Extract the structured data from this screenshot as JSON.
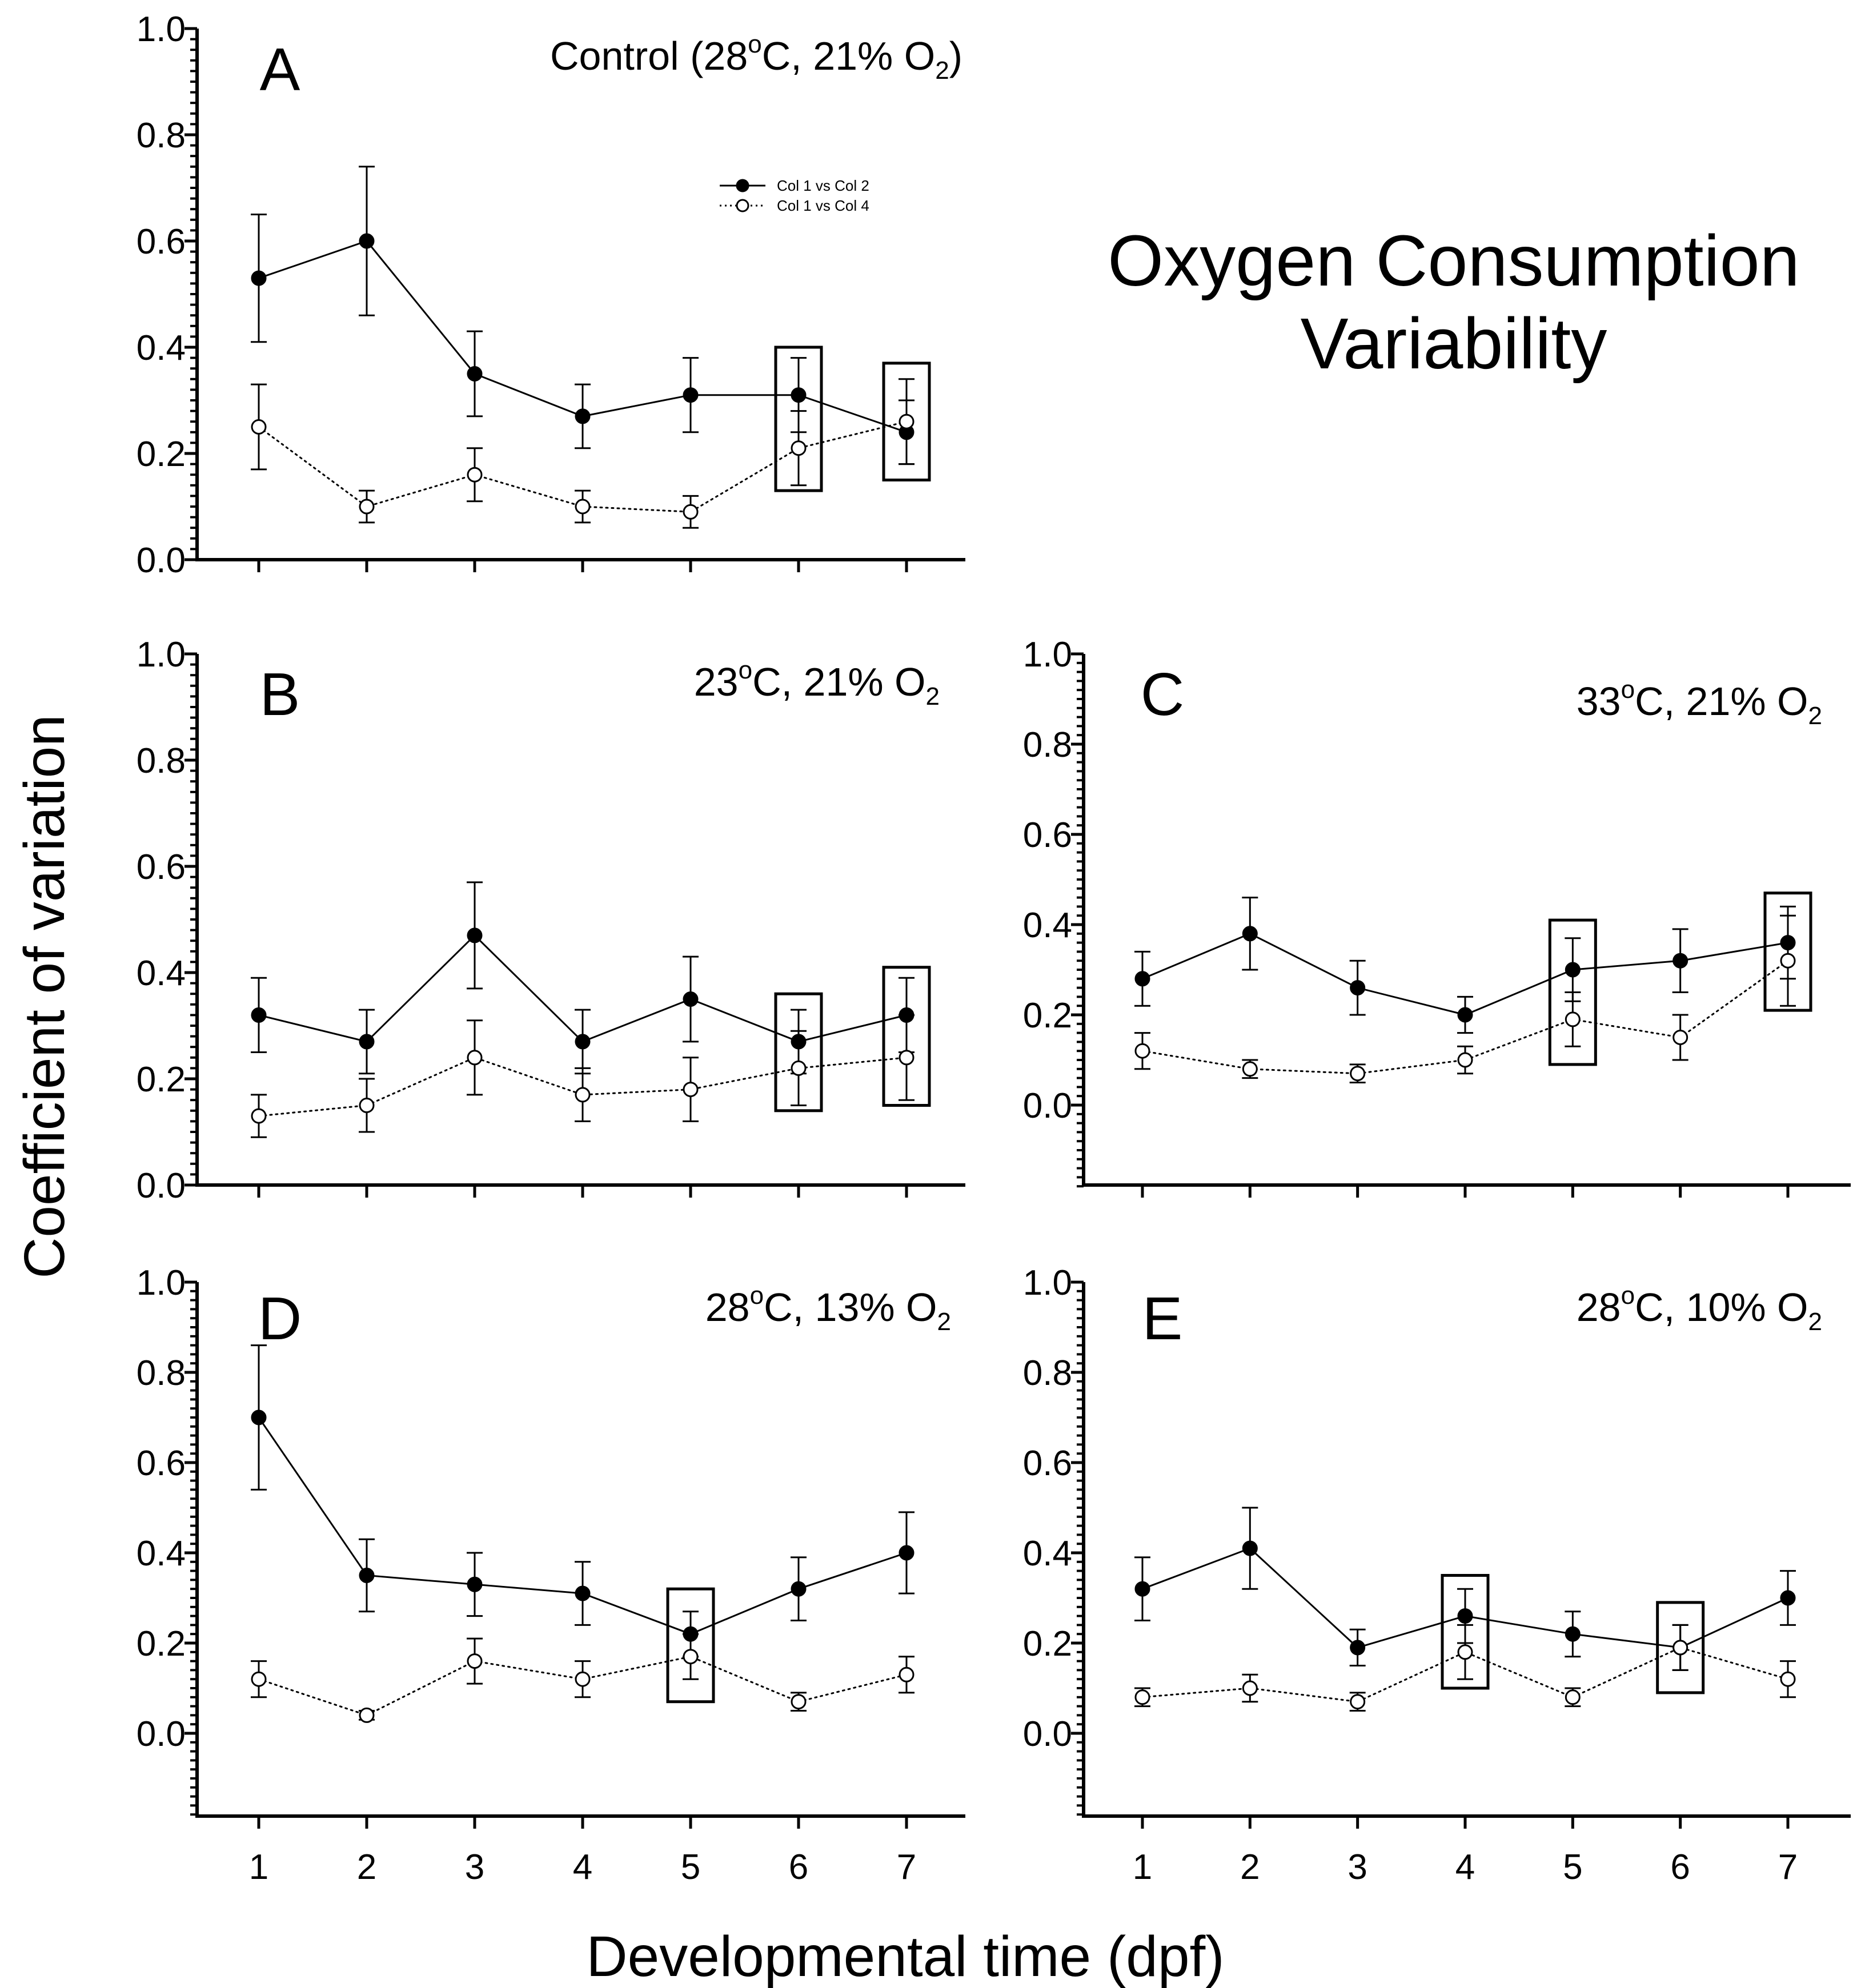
{
  "figure_title": [
    "Oxygen Consumption",
    "Variability"
  ],
  "ylabel": "Coefficient of variation",
  "xlabel": "Developmental time (dpf)",
  "legend": [
    {
      "label": "Col 1 vs Col 2",
      "marker": "filled-circle",
      "line": "solid"
    },
    {
      "label": "Col 1 vs Col 4",
      "marker": "open-circle",
      "line": "dotted"
    }
  ],
  "colors": {
    "line": "#000000",
    "background": "#ffffff"
  },
  "chart_data": [
    {
      "id": "A",
      "type": "line",
      "letter": "A",
      "condition": {
        "prefix": "Control (28",
        "sup": "o",
        "middle": "C, 21% O",
        "sub": "2",
        "suffix": ")"
      },
      "x": [
        1,
        2,
        3,
        4,
        5,
        6,
        7
      ],
      "xlim": [
        0.7,
        7.6
      ],
      "ylim": [
        0,
        1.0
      ],
      "yticks": [
        "0.0",
        "0.2",
        "0.4",
        "0.6",
        "0.8",
        "1.0"
      ],
      "xticks": [],
      "series": [
        {
          "name": "Col 1 vs Col 2",
          "values": [
            0.53,
            0.6,
            0.35,
            0.27,
            0.31,
            0.31,
            0.24
          ],
          "err_plus": [
            0.12,
            0.14,
            0.08,
            0.06,
            0.07,
            0.07,
            0.06
          ],
          "err_minus": [
            0.12,
            0.14,
            0.08,
            0.06,
            0.07,
            0.07,
            0.06
          ]
        },
        {
          "name": "Col 1 vs Col 4",
          "values": [
            0.25,
            0.1,
            0.16,
            0.1,
            0.09,
            0.21,
            0.26
          ],
          "err_plus": [
            0.08,
            0.03,
            0.05,
            0.03,
            0.03,
            0.07,
            0.08
          ],
          "err_minus": [
            0.08,
            0.03,
            0.05,
            0.03,
            0.03,
            0.07,
            0.08
          ]
        }
      ],
      "highlight_boxes": [
        {
          "x": 6,
          "y_low": 0.13,
          "y_high": 0.4
        },
        {
          "x": 7,
          "y_low": 0.15,
          "y_high": 0.37
        }
      ]
    },
    {
      "id": "B",
      "type": "line",
      "letter": "B",
      "condition": {
        "prefix": "23",
        "sup": "o",
        "middle": "C, 21% O",
        "sub": "2",
        "suffix": ""
      },
      "x": [
        1,
        2,
        3,
        4,
        5,
        6,
        7
      ],
      "xlim": [
        0.7,
        7.6
      ],
      "ylim": [
        0,
        1.0
      ],
      "yticks": [
        "0.0",
        "0.2",
        "0.4",
        "0.6",
        "0.8",
        "1.0"
      ],
      "xticks": [],
      "series": [
        {
          "name": "Col 1 vs Col 2",
          "values": [
            0.32,
            0.27,
            0.47,
            0.27,
            0.35,
            0.27,
            0.32
          ],
          "err_plus": [
            0.07,
            0.06,
            0.1,
            0.06,
            0.08,
            0.06,
            0.07
          ],
          "err_minus": [
            0.07,
            0.06,
            0.1,
            0.06,
            0.08,
            0.06,
            0.07
          ]
        },
        {
          "name": "Col 1 vs Col 4",
          "values": [
            0.13,
            0.15,
            0.24,
            0.17,
            0.18,
            0.22,
            0.24
          ],
          "err_plus": [
            0.04,
            0.05,
            0.07,
            0.05,
            0.06,
            0.07,
            0.08
          ],
          "err_minus": [
            0.04,
            0.05,
            0.07,
            0.05,
            0.06,
            0.07,
            0.08
          ]
        }
      ],
      "highlight_boxes": [
        {
          "x": 6,
          "y_low": 0.14,
          "y_high": 0.36
        },
        {
          "x": 7,
          "y_low": 0.15,
          "y_high": 0.41
        }
      ]
    },
    {
      "id": "C",
      "type": "line",
      "letter": "C",
      "condition": {
        "prefix": "33",
        "sup": "o",
        "middle": "C, 21% O",
        "sub": "2",
        "suffix": ""
      },
      "x": [
        1,
        2,
        3,
        4,
        5,
        6,
        7
      ],
      "xlim": [
        0.7,
        7.6
      ],
      "ylim": [
        -0.18,
        1.0
      ],
      "yticks": [
        "0.0",
        "0.2",
        "0.4",
        "0.6",
        "0.8",
        "1.0"
      ],
      "xticks": [],
      "series": [
        {
          "name": "Col 1 vs Col 2",
          "values": [
            0.28,
            0.38,
            0.26,
            0.2,
            0.3,
            0.32,
            0.36
          ],
          "err_plus": [
            0.06,
            0.08,
            0.06,
            0.04,
            0.07,
            0.07,
            0.08
          ],
          "err_minus": [
            0.06,
            0.08,
            0.06,
            0.04,
            0.07,
            0.07,
            0.08
          ]
        },
        {
          "name": "Col 1 vs Col 4",
          "values": [
            0.12,
            0.08,
            0.07,
            0.1,
            0.19,
            0.15,
            0.32
          ],
          "err_plus": [
            0.04,
            0.02,
            0.02,
            0.03,
            0.06,
            0.05,
            0.1
          ],
          "err_minus": [
            0.04,
            0.02,
            0.02,
            0.03,
            0.06,
            0.05,
            0.1
          ]
        }
      ],
      "highlight_boxes": [
        {
          "x": 5,
          "y_low": 0.09,
          "y_high": 0.41
        },
        {
          "x": 7,
          "y_low": 0.21,
          "y_high": 0.47
        }
      ]
    },
    {
      "id": "D",
      "type": "line",
      "letter": "D",
      "condition": {
        "prefix": "28",
        "sup": "o",
        "middle": "C, 13% O",
        "sub": "2",
        "suffix": ""
      },
      "x": [
        1,
        2,
        3,
        4,
        5,
        6,
        7
      ],
      "xlim": [
        0.7,
        7.6
      ],
      "ylim": [
        -0.18,
        1.0
      ],
      "yticks": [
        "0.0",
        "0.2",
        "0.4",
        "0.6",
        "0.8",
        "1.0"
      ],
      "xticks": [
        "1",
        "2",
        "3",
        "4",
        "5",
        "6",
        "7"
      ],
      "series": [
        {
          "name": "Col 1 vs Col 2",
          "values": [
            0.7,
            0.35,
            0.33,
            0.31,
            0.22,
            0.32,
            0.4
          ],
          "err_plus": [
            0.16,
            0.08,
            0.07,
            0.07,
            0.05,
            0.07,
            0.09
          ],
          "err_minus": [
            0.16,
            0.08,
            0.07,
            0.07,
            0.05,
            0.07,
            0.09
          ]
        },
        {
          "name": "Col 1 vs Col 4",
          "values": [
            0.12,
            0.04,
            0.16,
            0.12,
            0.17,
            0.07,
            0.13
          ],
          "err_plus": [
            0.04,
            0.01,
            0.05,
            0.04,
            0.05,
            0.02,
            0.04
          ],
          "err_minus": [
            0.04,
            0.01,
            0.05,
            0.04,
            0.05,
            0.02,
            0.04
          ]
        }
      ],
      "highlight_boxes": [
        {
          "x": 5,
          "y_low": 0.07,
          "y_high": 0.32
        }
      ]
    },
    {
      "id": "E",
      "type": "line",
      "letter": "E",
      "condition": {
        "prefix": "28",
        "sup": "o",
        "middle": "C, 10% O",
        "sub": "2",
        "suffix": ""
      },
      "x": [
        1,
        2,
        3,
        4,
        5,
        6,
        7
      ],
      "xlim": [
        0.7,
        7.6
      ],
      "ylim": [
        -0.18,
        1.0
      ],
      "yticks": [
        "0.0",
        "0.2",
        "0.4",
        "0.6",
        "0.8",
        "1.0"
      ],
      "xticks": [
        "1",
        "2",
        "3",
        "4",
        "5",
        "6",
        "7"
      ],
      "series": [
        {
          "name": "Col 1 vs Col 2",
          "values": [
            0.32,
            0.41,
            0.19,
            0.26,
            0.22,
            0.19,
            0.3
          ],
          "err_plus": [
            0.07,
            0.09,
            0.04,
            0.06,
            0.05,
            0.05,
            0.06
          ],
          "err_minus": [
            0.07,
            0.09,
            0.04,
            0.06,
            0.05,
            0.05,
            0.06
          ]
        },
        {
          "name": "Col 1 vs Col 4",
          "values": [
            0.08,
            0.1,
            0.07,
            0.18,
            0.08,
            0.19,
            0.12
          ],
          "err_plus": [
            0.02,
            0.03,
            0.02,
            0.06,
            0.02,
            0.05,
            0.04
          ],
          "err_minus": [
            0.02,
            0.03,
            0.02,
            0.06,
            0.02,
            0.05,
            0.04
          ]
        }
      ],
      "highlight_boxes": [
        {
          "x": 4,
          "y_low": 0.1,
          "y_high": 0.35
        },
        {
          "x": 6,
          "y_low": 0.09,
          "y_high": 0.29
        }
      ]
    }
  ]
}
